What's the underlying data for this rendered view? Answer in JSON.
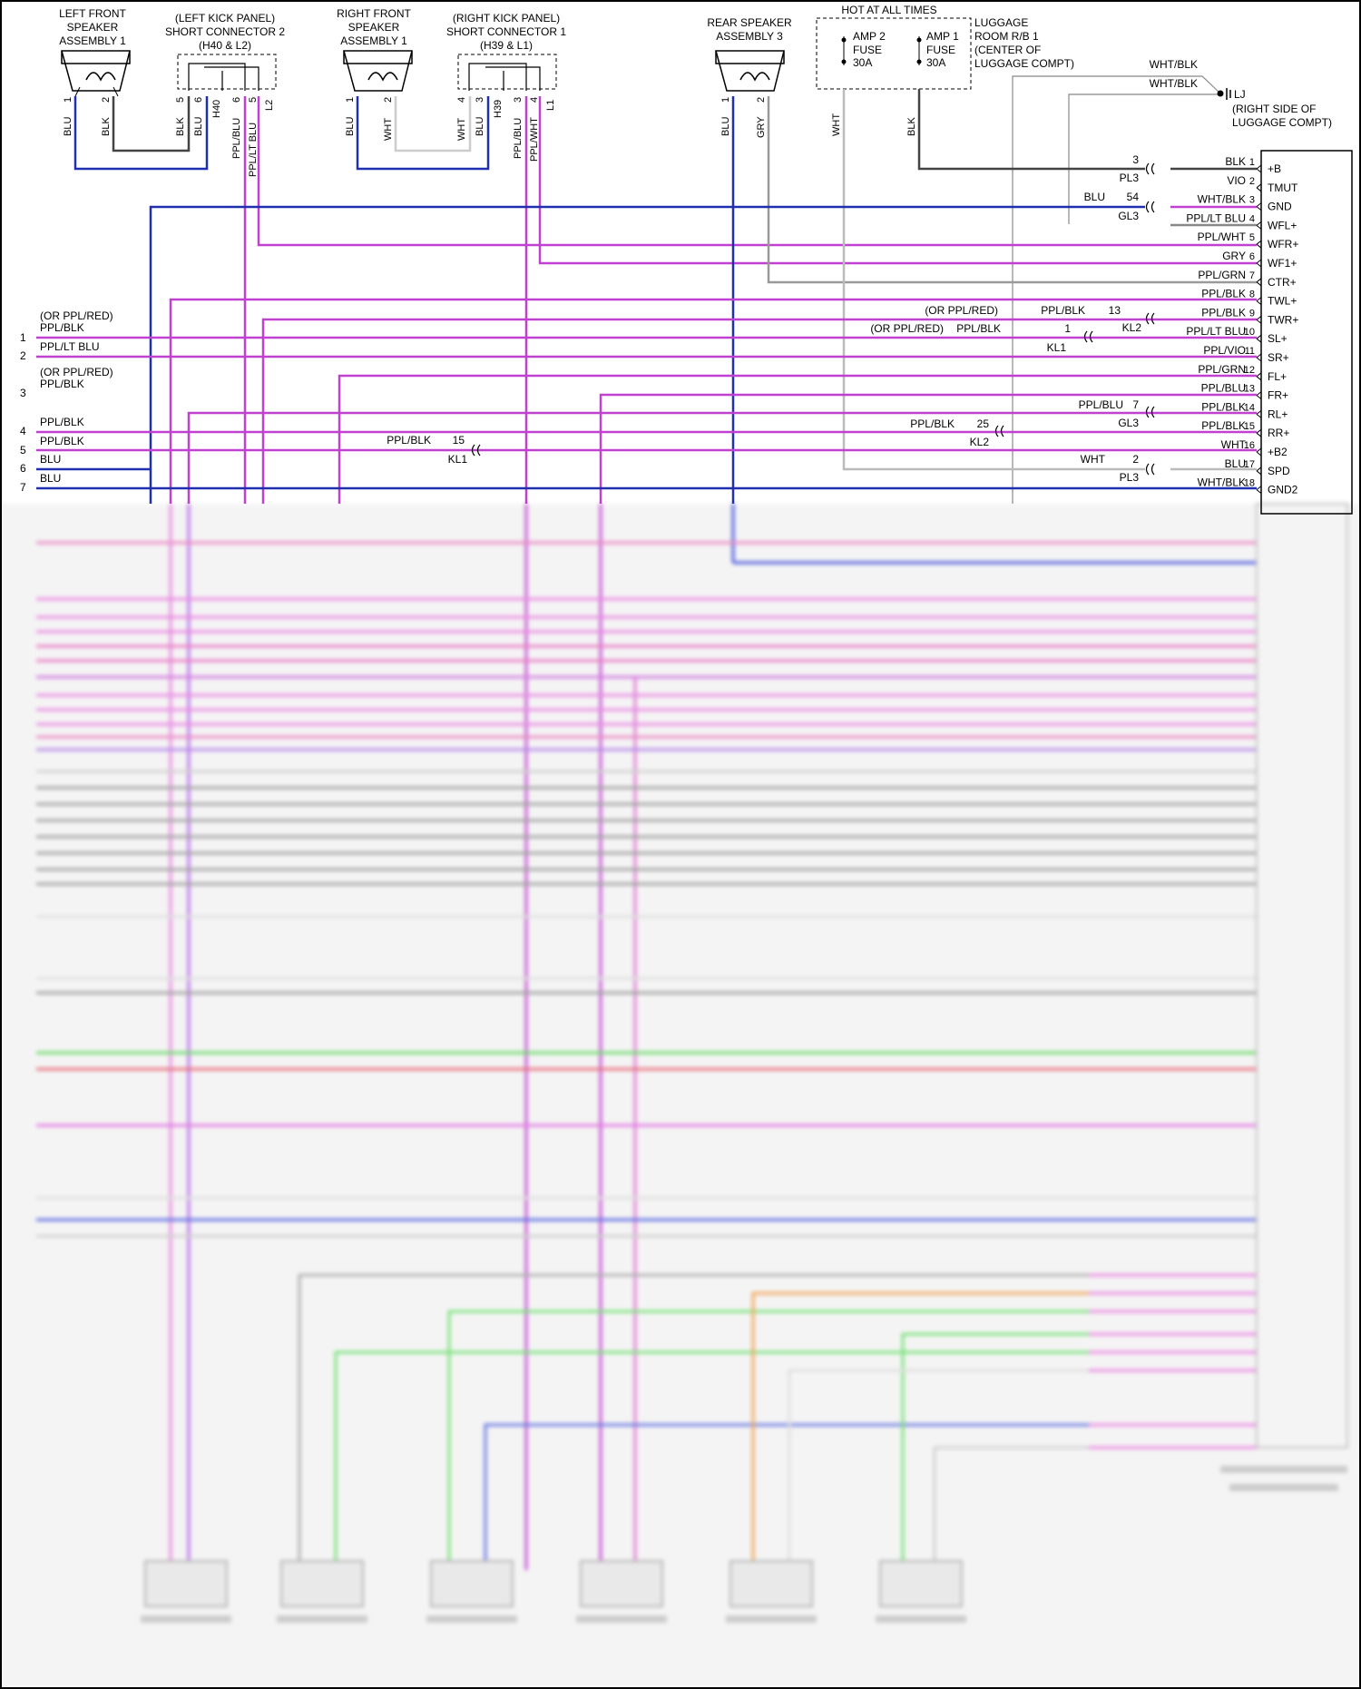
{
  "components": {
    "lf_speaker": {
      "name_lines": [
        "LEFT FRONT",
        "SPEAKER",
        "ASSEMBLY 1"
      ]
    },
    "lkp_connector": {
      "name_lines": [
        "(LEFT KICK PANEL)",
        "SHORT CONNECTOR 2",
        "(H40 & L2)"
      ]
    },
    "rf_speaker": {
      "name_lines": [
        "RIGHT FRONT",
        "SPEAKER",
        "ASSEMBLY 1"
      ]
    },
    "rkp_connector": {
      "name_lines": [
        "(RIGHT KICK PANEL)",
        "SHORT CONNECTOR 1",
        "(H39 & L1)"
      ]
    },
    "rear_speaker": {
      "name_lines": [
        "REAR SPEAKER",
        "ASSEMBLY 3"
      ]
    },
    "fuse_box": {
      "title": "HOT AT ALL TIMES",
      "fuses": [
        {
          "name": "AMP 2",
          "type": "FUSE",
          "rating": "30A"
        },
        {
          "name": "AMP 1",
          "type": "FUSE",
          "rating": "30A"
        }
      ],
      "location_lines": [
        "LUGGAGE",
        "ROOM R/B 1",
        "(CENTER OF",
        "LUGGAGE COMPT)"
      ]
    },
    "ground": {
      "id": "LJ",
      "note_lines": [
        "(RIGHT SIDE OF",
        "LUGGAGE COMPT)"
      ],
      "wire1": "WHT/BLK",
      "wire2": "WHT/BLK"
    }
  },
  "top_pins": {
    "lf_speaker": [
      {
        "pin": "1",
        "wire": "BLU"
      },
      {
        "pin": "2",
        "wire": "BLK"
      }
    ],
    "lkp_connector": [
      {
        "pin": "5",
        "wire": "BLK"
      },
      {
        "pin": "6",
        "wire": "BLU"
      },
      {
        "pin": "",
        "wire": "H40"
      },
      {
        "pin": "6",
        "wire": "PPL/BLU"
      },
      {
        "pin": "5",
        "wire": "PPL/LT BLU"
      },
      {
        "pin": "",
        "wire": "L2"
      }
    ],
    "rf_speaker": [
      {
        "pin": "1",
        "wire": "BLU"
      },
      {
        "pin": "2",
        "wire": "WHT"
      }
    ],
    "rkp_connector": [
      {
        "pin": "4",
        "wire": "WHT"
      },
      {
        "pin": "3",
        "wire": "BLU"
      },
      {
        "pin": "",
        "wire": "H39"
      },
      {
        "pin": "3",
        "wire": "PPL/BLU"
      },
      {
        "pin": "4",
        "wire": "PPL/WHT"
      },
      {
        "pin": "",
        "wire": "L1"
      }
    ],
    "rear_speaker": [
      {
        "pin": "1",
        "wire": "BLU"
      },
      {
        "pin": "2",
        "wire": "GRY"
      }
    ],
    "fuses": [
      {
        "wire": "WHT"
      },
      {
        "wire": "BLK"
      }
    ]
  },
  "amp_pins": [
    {
      "num": "1",
      "label": "+B",
      "wire": "BLK"
    },
    {
      "num": "2",
      "label": "TMUT",
      "wire": "VIO"
    },
    {
      "num": "3",
      "label": "GND",
      "wire": "WHT/BLK"
    },
    {
      "num": "4",
      "label": "WFL+",
      "wire": "PPL/LT BLU"
    },
    {
      "num": "5",
      "label": "WFR+",
      "wire": "PPL/WHT"
    },
    {
      "num": "6",
      "label": "WF1+",
      "wire": "GRY"
    },
    {
      "num": "7",
      "label": "CTR+",
      "wire": "PPL/GRN"
    },
    {
      "num": "8",
      "label": "TWL+",
      "wire": "PPL/BLK"
    },
    {
      "num": "9",
      "label": "TWR+",
      "wire": "PPL/BLK"
    },
    {
      "num": "10",
      "label": "SL+",
      "wire": "PPL/LT BLU"
    },
    {
      "num": "11",
      "label": "SR+",
      "wire": "PPL/VIO"
    },
    {
      "num": "12",
      "label": "FL+",
      "wire": "PPL/GRN"
    },
    {
      "num": "13",
      "label": "FR+",
      "wire": "PPL/BLU"
    },
    {
      "num": "14",
      "label": "RL+",
      "wire": "PPL/BLK"
    },
    {
      "num": "15",
      "label": "RR+",
      "wire": "PPL/BLK"
    },
    {
      "num": "16",
      "label": "+B2",
      "wire": "WHT"
    },
    {
      "num": "17",
      "label": "SPD",
      "wire": "BLU"
    },
    {
      "num": "18",
      "label": "GND2",
      "wire": "WHT/BLK"
    }
  ],
  "connectors": [
    {
      "id": "3",
      "conn": "PL3"
    },
    {
      "id": "54",
      "conn": "GL3",
      "left_wire": "BLU"
    },
    {
      "id": "13",
      "conn": "KL2",
      "left_wire": "PPL/BLK"
    },
    {
      "id": "1",
      "conn": "KL1",
      "left_wire": "PPL/BLK"
    },
    {
      "id": "7",
      "conn": "GL3",
      "left_wire": "PPL/BLU"
    },
    {
      "id": "25",
      "conn": "KL2",
      "left_wire": "PPL/BLK"
    },
    {
      "id": "15",
      "conn": "KL1",
      "left_wire": "PPL/BLK"
    },
    {
      "id": "2",
      "conn": "PL3",
      "left_wire": "WHT"
    }
  ],
  "alt_color_notes": [
    "(OR PPL/RED)",
    "(OR PPL/RED)"
  ],
  "left_rows": [
    {
      "num": "1",
      "alt": "(OR PPL/RED)",
      "wire": "PPL/BLK"
    },
    {
      "num": "2",
      "alt": "",
      "wire": "PPL/LT BLU"
    },
    {
      "num": "3",
      "alt": "(OR PPL/RED)",
      "wire": "PPL/BLK"
    },
    {
      "num": "4",
      "alt": "",
      "wire": "PPL/BLK"
    },
    {
      "num": "5",
      "alt": "",
      "wire": "PPL/BLK"
    },
    {
      "num": "6",
      "alt": "",
      "wire": "BLU"
    },
    {
      "num": "7",
      "alt": "",
      "wire": "BLU"
    }
  ],
  "colors": {
    "blue": "#1f2fb0",
    "magenta": "#c040d0",
    "purple": "#9a2ed8",
    "gray": "#999999",
    "dark": "#444444",
    "green": "#3ad43a",
    "red": "#e85a6a",
    "pink": "#e880e0",
    "orange": "#f0a040"
  }
}
